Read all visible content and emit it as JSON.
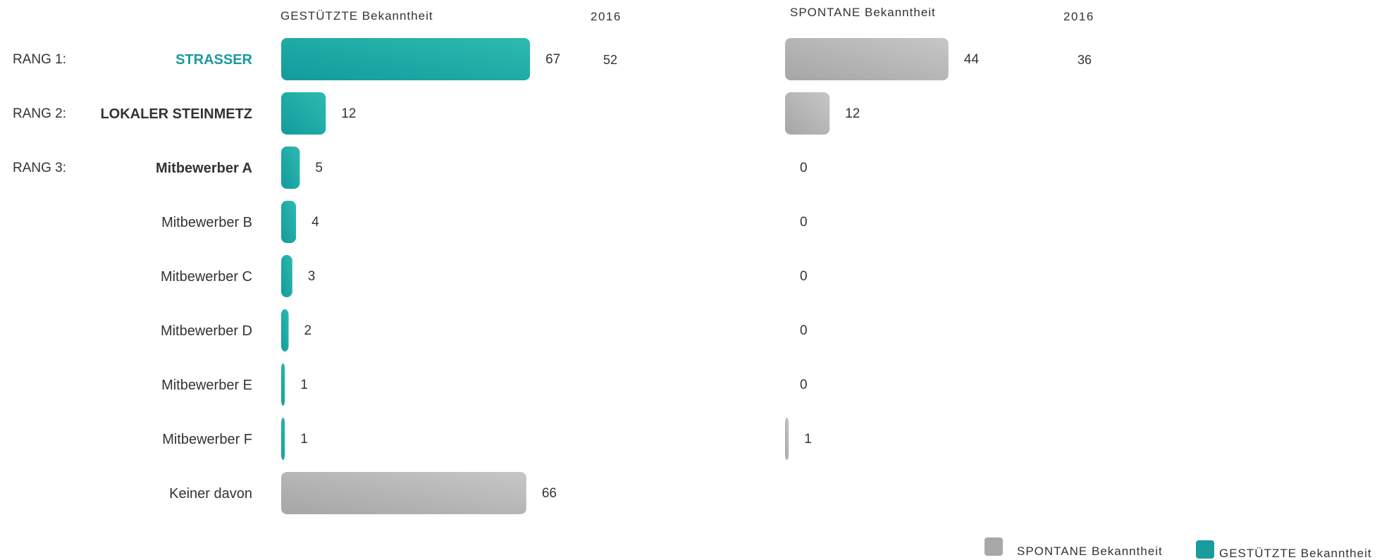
{
  "chart_data": {
    "type": "bar",
    "orientation": "horizontal",
    "categories": [
      "STRASSER",
      "LOKALER STEINMETZ",
      "Mitbewerber A",
      "Mitbewerber B",
      "Mitbewerber C",
      "Mitbewerber D",
      "Mitbewerber E",
      "Mitbewerber F",
      "Keiner davon"
    ],
    "rank_labels": [
      "RANG 1:",
      "RANG 2:",
      "RANG 3:",
      "",
      "",
      "",
      "",
      "",
      ""
    ],
    "emphasis": [
      "highlight",
      "bold",
      "bold",
      "normal",
      "normal",
      "normal",
      "normal",
      "normal",
      "normal"
    ],
    "series": [
      {
        "name": "GESTÜTZTE Bekanntheit",
        "values": [
          67,
          12,
          5,
          4,
          3,
          2,
          1,
          1,
          66
        ],
        "comparison_label": "2016",
        "comparison_values": [
          52,
          null,
          null,
          null,
          null,
          null,
          null,
          null,
          null
        ]
      },
      {
        "name": "SPONTANE Bekanntheit",
        "values": [
          44,
          12,
          0,
          0,
          0,
          0,
          0,
          1,
          null
        ],
        "comparison_label": "2016",
        "comparison_values": [
          36,
          null,
          null,
          null,
          null,
          null,
          null,
          null,
          null
        ]
      }
    ],
    "xlim": [
      0,
      100
    ],
    "grid": false,
    "legend": {
      "position": "bottom-right",
      "entries": [
        {
          "label": "SPONTANE Bekanntheit",
          "color": "gray"
        },
        {
          "label": "GESTÜTZTE Bekanntheit",
          "color": "teal"
        }
      ]
    },
    "colors": {
      "teal": "#20a9a4",
      "teal_light": "#2bb8ae",
      "gray": "#a8a8a8",
      "gray_light": "#c3c3c3",
      "highlight_text": "#1a9aa0",
      "text": "#333333"
    }
  }
}
